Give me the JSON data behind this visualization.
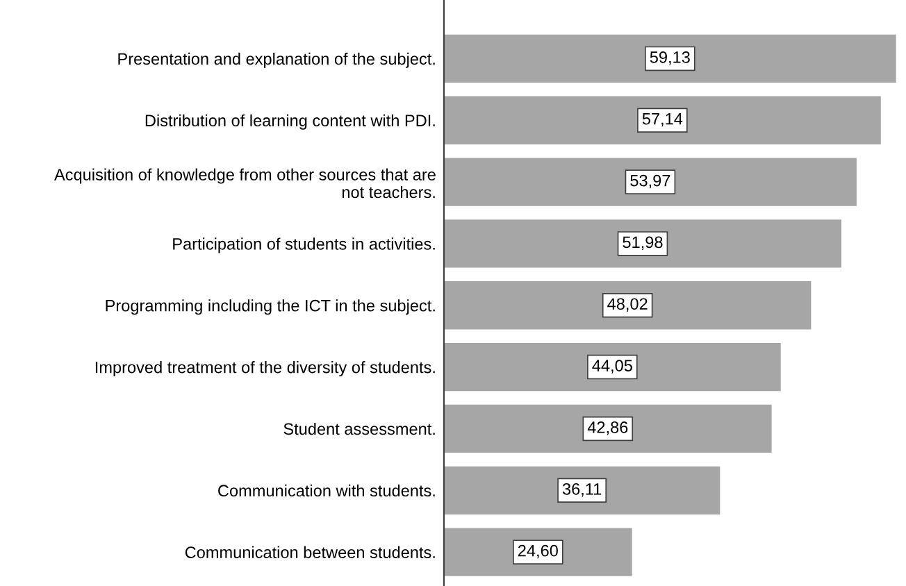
{
  "chart_data": {
    "type": "bar",
    "orientation": "horizontal",
    "color": "#a6a6a6",
    "categories": [
      "Presentation and explanation of the subject.",
      "Distribution of learning content with PDI.",
      "Acquisition of knowledge from other sources that are\nnot teachers.",
      "Participation of students in activities.",
      "Programming including the ICT in the subject.",
      "Improved treatment of the diversity of students.",
      "Student assessment.",
      "Communication with students.",
      "Communication between students."
    ],
    "values": [
      59.13,
      57.14,
      53.97,
      51.98,
      48.02,
      44.05,
      42.86,
      36.11,
      24.6
    ],
    "value_labels": [
      "59,13",
      "57,14",
      "53,97",
      "51,98",
      "48,02",
      "44,05",
      "42,86",
      "36,11",
      "24,60"
    ],
    "grid": false,
    "legend": false
  }
}
